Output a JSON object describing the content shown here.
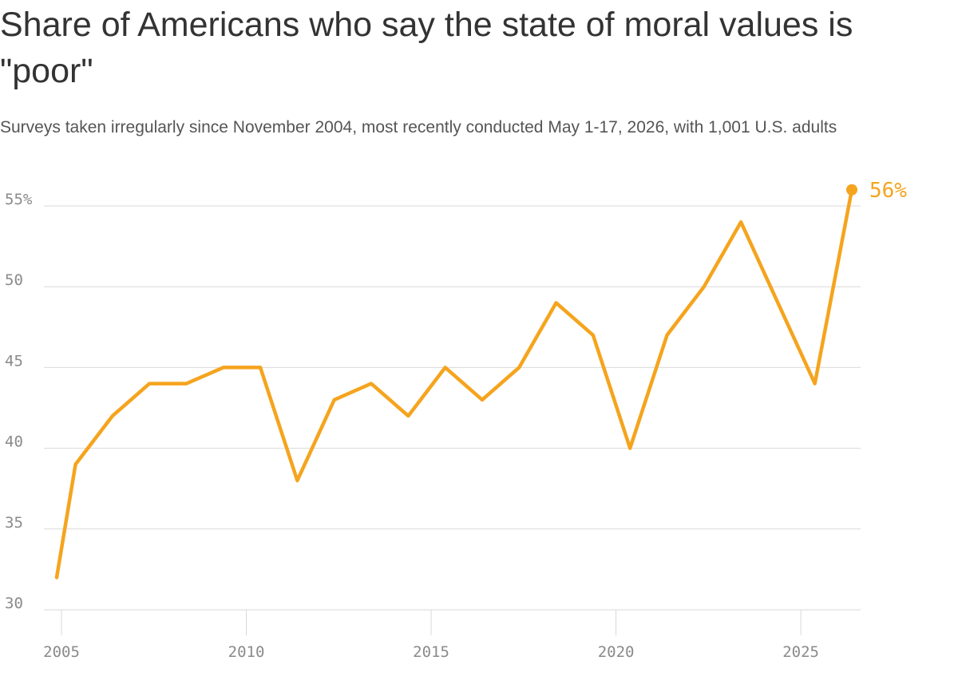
{
  "title": "Share of Americans who say the state of moral values is \"poor\"",
  "subtitle": "Surveys taken irregularly since November 2004, most recently conducted May 1-17, 2026, with 1,001 U.S. adults",
  "colors": {
    "line": "#f5a41e",
    "grid": "#d9d9d9",
    "tick_text": "#8a8a8a"
  },
  "chart_data": {
    "type": "line",
    "title": "Share of Americans who say the state of moral values is \"poor\"",
    "xlabel": "",
    "ylabel": "",
    "xlim": [
      2004.6,
      2026.7
    ],
    "ylim": [
      30,
      56
    ],
    "grid": true,
    "x_ticks": [
      2005,
      2010,
      2015,
      2020,
      2025
    ],
    "y_ticks": [
      30,
      35,
      40,
      45,
      50,
      55
    ],
    "y_tick_labels": [
      "30",
      "35",
      "40",
      "45",
      "50",
      "55%"
    ],
    "series": [
      {
        "x": [
          2004.87,
          2005.38,
          2006.38,
          2007.38,
          2008.38,
          2009.38,
          2010.38,
          2011.38,
          2012.38,
          2013.38,
          2014.38,
          2015.38,
          2016.38,
          2017.38,
          2018.38,
          2019.38,
          2020.38,
          2021.38,
          2022.38,
          2023.38,
          2024.38,
          2025.38,
          2026.38
        ],
        "values": [
          32,
          39,
          42,
          44,
          44,
          45,
          45,
          38,
          43,
          44,
          42,
          45,
          43,
          45,
          49,
          47,
          40,
          47,
          50,
          54,
          49,
          44,
          56
        ]
      }
    ],
    "end_label": "56%"
  }
}
